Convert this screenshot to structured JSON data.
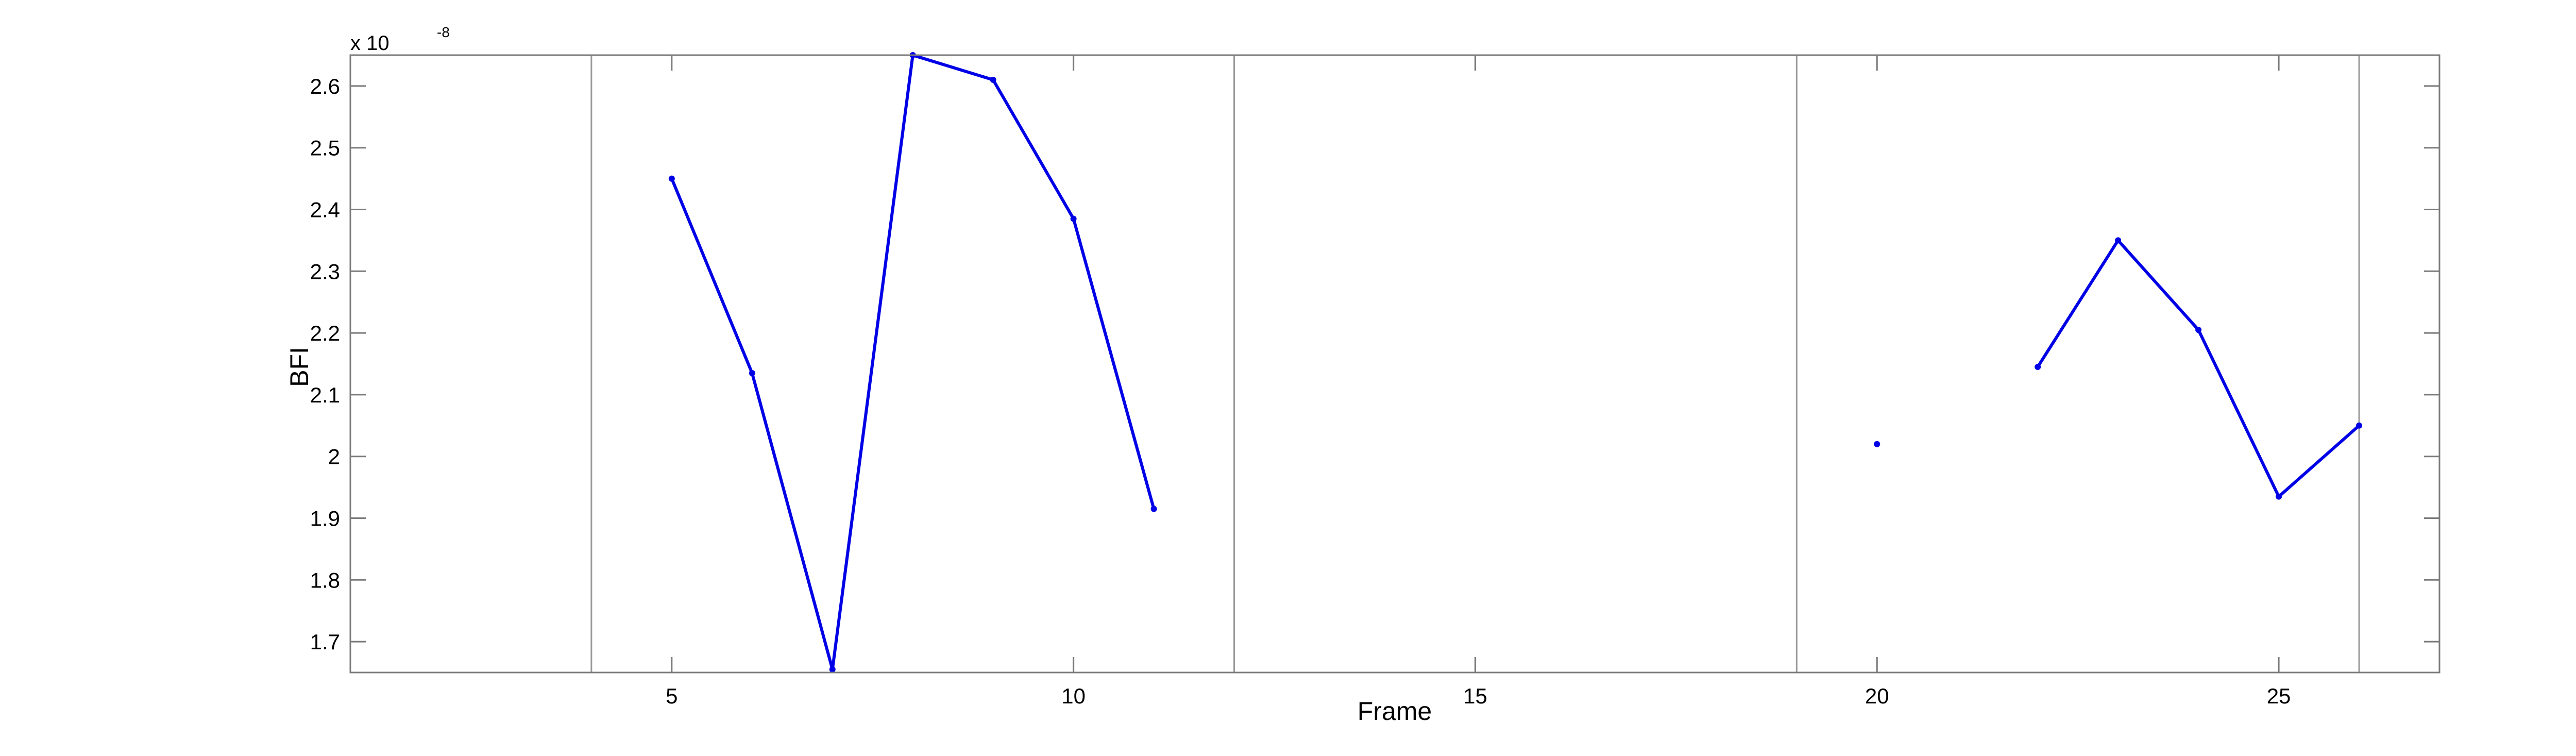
{
  "chart_data": {
    "type": "line",
    "title": "",
    "xlabel": "Frame",
    "ylabel": "BFI",
    "y_scale_factor": {
      "prefix": "x 10",
      "exponent": "-8"
    },
    "xlim": [
      1,
      27
    ],
    "ylim": [
      1.65,
      2.65
    ],
    "xticks": [
      5,
      10,
      15,
      20,
      25
    ],
    "xtick_labels": [
      "5",
      "10",
      "15",
      "20",
      "25"
    ],
    "yticks": [
      1.7,
      1.8,
      1.9,
      2.0,
      2.1,
      2.2,
      2.3,
      2.4,
      2.5,
      2.6
    ],
    "ytick_labels": [
      "1.7",
      "1.8",
      "1.9",
      "2",
      "2.1",
      "2.2",
      "2.3",
      "2.4",
      "2.5",
      "2.6"
    ],
    "vertical_lines": [
      4,
      12,
      19,
      26
    ],
    "grid": false,
    "colors": {
      "series": "#0000e6",
      "vertical_lines": "#999999",
      "axes": "#7a7a7a"
    },
    "series": [
      {
        "x": [
          5,
          6,
          7,
          8,
          9,
          10,
          11
        ],
        "y": [
          2.45,
          2.135,
          1.655,
          2.65,
          2.61,
          2.385,
          1.915
        ]
      },
      {
        "x": [
          20
        ],
        "y": [
          2.02
        ]
      },
      {
        "x": [
          22,
          23,
          24,
          25,
          26
        ],
        "y": [
          2.145,
          2.35,
          2.205,
          1.935,
          2.05
        ]
      }
    ]
  }
}
